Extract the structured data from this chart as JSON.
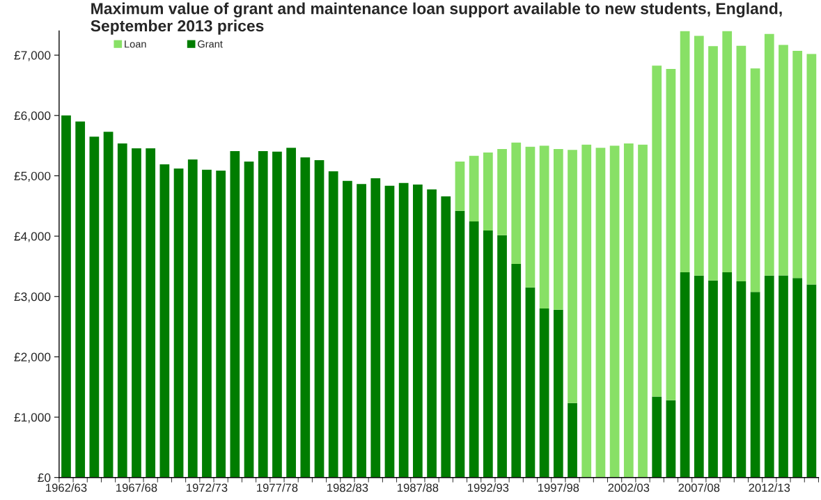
{
  "chart_data": {
    "type": "bar",
    "stacked": true,
    "title": "Maximum value of grant and maintenance loan support available to new students, England, September 2013 prices",
    "categories": [
      "1962/63",
      null,
      null,
      null,
      null,
      "1967/68",
      null,
      null,
      null,
      null,
      "1972/73",
      null,
      null,
      null,
      null,
      "1977/78",
      null,
      null,
      null,
      null,
      "1982/83",
      null,
      null,
      null,
      null,
      "1987/88",
      null,
      null,
      null,
      null,
      "1992/93",
      null,
      null,
      null,
      null,
      "1997/98",
      null,
      null,
      null,
      null,
      "2002/03",
      null,
      null,
      null,
      null,
      "2007/08",
      null,
      null,
      null,
      null,
      "2012/13",
      null,
      null,
      null
    ],
    "series": [
      {
        "name": "Grant",
        "color": "#007d00",
        "values": [
          6000,
          5900,
          5650,
          5730,
          5535,
          5455,
          5455,
          5190,
          5120,
          5270,
          5100,
          5085,
          5410,
          5235,
          5410,
          5400,
          5465,
          5305,
          5260,
          5075,
          4915,
          4865,
          4960,
          4835,
          4880,
          4855,
          4775,
          4660,
          4420,
          4245,
          4095,
          4015,
          3540,
          3150,
          2800,
          2780,
          1235,
          null,
          null,
          null,
          null,
          null,
          1340,
          1280,
          3400,
          3345,
          3265,
          3400,
          3250,
          3075,
          3345,
          3350,
          3305,
          3200
        ]
      },
      {
        "name": "Loan",
        "color": "#88e066",
        "values": [
          null,
          null,
          null,
          null,
          null,
          null,
          null,
          null,
          null,
          null,
          null,
          null,
          null,
          null,
          null,
          null,
          null,
          null,
          null,
          null,
          null,
          null,
          null,
          null,
          null,
          null,
          null,
          null,
          815,
          1085,
          1290,
          1430,
          2010,
          2330,
          2700,
          2665,
          4195,
          5515,
          5465,
          5500,
          5535,
          5515,
          5485,
          5490,
          4000,
          3975,
          3885,
          4000,
          3905,
          3705,
          4005,
          3820,
          3765,
          3820
        ]
      }
    ],
    "ylim": [
      0,
      7400
    ],
    "yticks": [
      {
        "value": 0,
        "label": "£0"
      },
      {
        "value": 1000,
        "label": "£1,000"
      },
      {
        "value": 2000,
        "label": "£2,000"
      },
      {
        "value": 3000,
        "label": "£3,000"
      },
      {
        "value": 4000,
        "label": "£4,000"
      },
      {
        "value": 5000,
        "label": "£5,000"
      },
      {
        "value": 6000,
        "label": "£6,000"
      },
      {
        "value": 7000,
        "label": "£7,000"
      }
    ],
    "grid": false,
    "legend": "top left"
  }
}
